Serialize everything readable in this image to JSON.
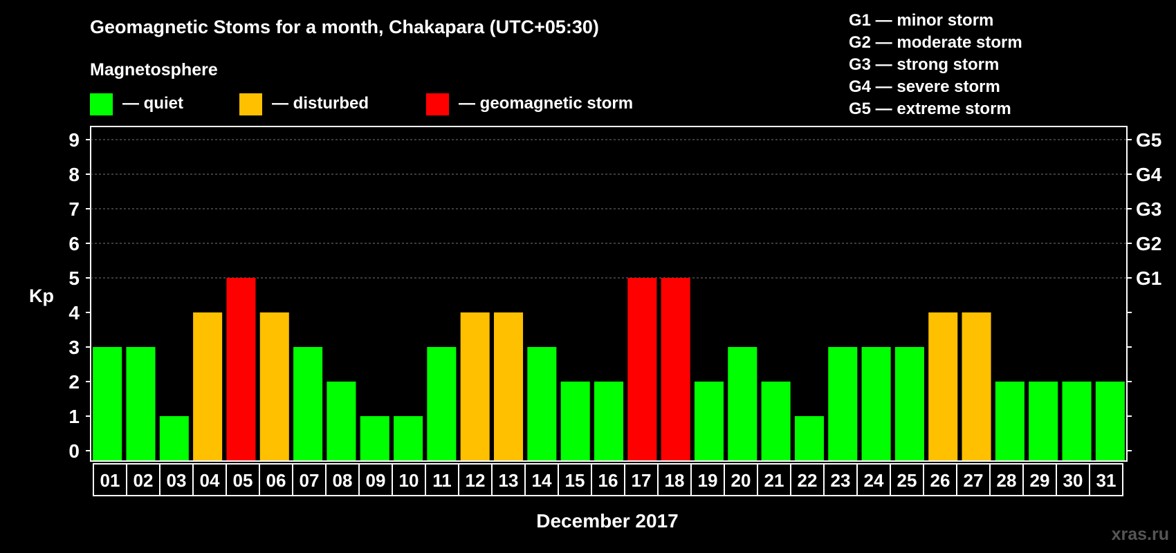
{
  "title": "Geomagnetic Stoms for a month, Chakapara (UTC+05:30)",
  "legend_title": "Magnetosphere",
  "legend": [
    {
      "label": "— quiet",
      "color": "#00ff00"
    },
    {
      "label": "— disturbed",
      "color": "#ffc000"
    },
    {
      "label": "— geomagnetic storm",
      "color": "#ff0000"
    }
  ],
  "storm_scale": [
    "G1 — minor storm",
    "G2 — moderate storm",
    "G3 — strong storm",
    "G4 — severe storm",
    "G5 — extreme storm"
  ],
  "watermark": "xras.ru",
  "chart_data": {
    "type": "bar",
    "ylabel": "Kp",
    "xlabel": "December 2017",
    "ylim": [
      0,
      9
    ],
    "yticks": [
      "0",
      "1",
      "2",
      "3",
      "4",
      "5",
      "6",
      "7",
      "8",
      "9"
    ],
    "g_levels": [
      {
        "kp": 5,
        "label": "G1"
      },
      {
        "kp": 6,
        "label": "G2"
      },
      {
        "kp": 7,
        "label": "G3"
      },
      {
        "kp": 8,
        "label": "G4"
      },
      {
        "kp": 9,
        "label": "G5"
      }
    ],
    "grid": true,
    "categories": [
      "01",
      "02",
      "03",
      "04",
      "05",
      "06",
      "07",
      "08",
      "09",
      "10",
      "11",
      "12",
      "13",
      "14",
      "15",
      "16",
      "17",
      "18",
      "19",
      "20",
      "21",
      "22",
      "23",
      "24",
      "25",
      "26",
      "27",
      "28",
      "29",
      "30",
      "31"
    ],
    "values": [
      3,
      3,
      1,
      4,
      5,
      4,
      3,
      2,
      1,
      1,
      3,
      4,
      4,
      3,
      2,
      2,
      5,
      5,
      2,
      3,
      2,
      1,
      3,
      3,
      3,
      4,
      4,
      2,
      2,
      2,
      2
    ],
    "colors": {
      "quiet": "#00ff00",
      "disturbed": "#ffc000",
      "storm": "#ff0000"
    }
  }
}
